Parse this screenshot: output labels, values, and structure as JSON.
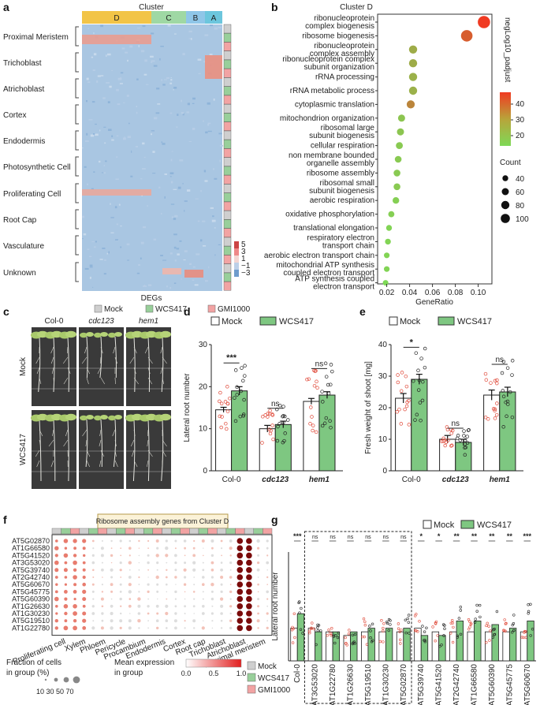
{
  "panels": {
    "a": "a",
    "b": "b",
    "c": "c",
    "d": "d",
    "e": "e",
    "f": "f",
    "g": "g"
  },
  "a": {
    "title": "Cluster",
    "clusters": [
      {
        "label": "D",
        "color": "#f2c447"
      },
      {
        "label": "C",
        "color": "#9fd8a4"
      },
      {
        "label": "B",
        "color": "#8fc6e8"
      },
      {
        "label": "A",
        "color": "#6cc6dd"
      }
    ],
    "row_labels": [
      "Proximal Meristem",
      "Trichoblast",
      "Atrichoblast",
      "Cortex",
      "Endodermis",
      "Photosynthetic Cell",
      "Proliferating Cell",
      "Root Cap",
      "Vasculature",
      "Unknown"
    ],
    "xlabel": "DEGs",
    "colorbar_ticks": [
      "5",
      "3",
      "1",
      "−1",
      "−3"
    ],
    "legend": [
      {
        "label": "Mock",
        "color": "#cfcfcf"
      },
      {
        "label": "WCS417",
        "color": "#98cf9a"
      },
      {
        "label": "GMI1000",
        "color": "#f2a3a3"
      }
    ]
  },
  "b": {
    "title": "Cluster D",
    "colorbar_title": "negLog10_padjust",
    "colorbar_ticks": [
      "40",
      "30",
      "20"
    ],
    "size_title": "Count",
    "size_ticks": [
      "40",
      "60",
      "80",
      "100"
    ],
    "xlabel": "GeneRatio",
    "chart_data": {
      "type": "scatter",
      "title": "Cluster D",
      "xlabel": "GeneRatio",
      "xticks": [
        "0.02",
        "0.04",
        "0.06",
        "0.08",
        "0.10"
      ],
      "xlim": [
        0.012,
        0.112
      ],
      "terms": [
        {
          "label": [
            "ribonucleoprotein",
            "complex biogenesis"
          ],
          "x": 0.105,
          "count": 100,
          "nlp": 45
        },
        {
          "label": [
            "ribosome biogenesis"
          ],
          "x": 0.09,
          "count": 88,
          "nlp": 38
        },
        {
          "label": [
            "ribonucleoprotein",
            "complex assembly"
          ],
          "x": 0.043,
          "count": 45,
          "nlp": 22
        },
        {
          "label": [
            "ribonucleoprotein complex",
            "subunit organization"
          ],
          "x": 0.043,
          "count": 45,
          "nlp": 22
        },
        {
          "label": [
            "rRNA processing"
          ],
          "x": 0.043,
          "count": 44,
          "nlp": 21
        },
        {
          "label": [
            "rRNA metabolic process"
          ],
          "x": 0.043,
          "count": 44,
          "nlp": 21
        },
        {
          "label": [
            "cytoplasmic translation"
          ],
          "x": 0.041,
          "count": 42,
          "nlp": 30
        },
        {
          "label": [
            "mitochondrion organization"
          ],
          "x": 0.033,
          "count": 34,
          "nlp": 17
        },
        {
          "label": [
            "ribosomal large",
            "subunit biogenesis"
          ],
          "x": 0.032,
          "count": 33,
          "nlp": 17
        },
        {
          "label": [
            "cellular respiration"
          ],
          "x": 0.031,
          "count": 32,
          "nlp": 16
        },
        {
          "label": [
            "non membrane bounded",
            "organelle assembly"
          ],
          "x": 0.03,
          "count": 31,
          "nlp": 16
        },
        {
          "label": [
            "ribosome assembly"
          ],
          "x": 0.029,
          "count": 30,
          "nlp": 16
        },
        {
          "label": [
            "ribosomal small",
            "subunit biogenesis"
          ],
          "x": 0.029,
          "count": 30,
          "nlp": 16
        },
        {
          "label": [
            "aerobic respiration"
          ],
          "x": 0.028,
          "count": 29,
          "nlp": 15
        },
        {
          "label": [
            "oxidative phosphorylation"
          ],
          "x": 0.024,
          "count": 25,
          "nlp": 15
        },
        {
          "label": [
            "translational elongation"
          ],
          "x": 0.022,
          "count": 23,
          "nlp": 14
        },
        {
          "label": [
            "respiratory electron",
            "transport chain"
          ],
          "x": 0.021,
          "count": 22,
          "nlp": 14
        },
        {
          "label": [
            "aerobic electron transport chain"
          ],
          "x": 0.02,
          "count": 21,
          "nlp": 14
        },
        {
          "label": [
            "mitochondrial ATP synthesis",
            "coupled electron transport"
          ],
          "x": 0.02,
          "count": 21,
          "nlp": 14
        },
        {
          "label": [
            "ATP synthesis coupled",
            "electron transport"
          ],
          "x": 0.019,
          "count": 20,
          "nlp": 13
        }
      ]
    }
  },
  "c": {
    "columns": [
      "Col-0",
      "cdc123",
      "hem1"
    ],
    "rows": [
      "Mock",
      "WCS417"
    ]
  },
  "d": {
    "legend": [
      "Mock",
      "WCS417"
    ],
    "ylabel": "Lateral root number",
    "groups": [
      "Col-0",
      "cdc123",
      "hem1"
    ],
    "chart_data": {
      "type": "bar",
      "ylabel": "Lateral root number",
      "ylim": [
        0,
        30
      ],
      "yticks": [
        0,
        10,
        20,
        30
      ],
      "categories": [
        "Col-0",
        "cdc123",
        "hem1"
      ],
      "series": [
        {
          "name": "Mock",
          "values": [
            14.5,
            10,
            16.5
          ]
        },
        {
          "name": "WCS417",
          "values": [
            19,
            11,
            18
          ]
        }
      ],
      "errors": [
        [
          0.6,
          0.8,
          0.7
        ],
        [
          1.0,
          0.8,
          0.8
        ]
      ],
      "significance": [
        "***",
        "ns",
        "ns"
      ]
    }
  },
  "e": {
    "legend": [
      "Mock",
      "WCS417"
    ],
    "ylabel": "Fresh weight of shoot [mg]",
    "groups": [
      "Col-0",
      "cdc123",
      "hem1"
    ],
    "chart_data": {
      "type": "bar",
      "ylabel": "Fresh weight of shoot [mg]",
      "ylim": [
        0,
        40
      ],
      "yticks": [
        0,
        10,
        20,
        30,
        40
      ],
      "categories": [
        "Col-0",
        "cdc123",
        "hem1"
      ],
      "series": [
        {
          "name": "Mock",
          "values": [
            23,
            10,
            24
          ]
        },
        {
          "name": "WCS417",
          "values": [
            29,
            9,
            25
          ]
        }
      ],
      "errors": [
        [
          1.5,
          1.2,
          1.6
        ],
        [
          1.6,
          1.0,
          1.5
        ]
      ],
      "significance": [
        "*",
        "ns",
        "ns"
      ]
    }
  },
  "f": {
    "title": "Ribosome assembly genes from Cluster D",
    "genes": [
      "AT5G02870",
      "AT1G66580",
      "AT5G41520",
      "AT3G53020",
      "AT5G39740",
      "AT2G42740",
      "AT5G60670",
      "AT5G45775",
      "AT5G60390",
      "AT1G26630",
      "AT1G30230",
      "AT5G19510",
      "AT1G22780"
    ],
    "cell_types": [
      "Proliferating cell",
      "Xylem",
      "Phloem",
      "Pericycle",
      "Procambium",
      "Endodermis",
      "Cortex",
      "Root cap",
      "Trichoblast",
      "Atrichoblast",
      "Proximal meristem"
    ],
    "frac_title": "Fraction of cells in group (%)",
    "frac_ticks": "10 30 50 70",
    "mean_title": "Mean expression in group",
    "mean_ticks": [
      "0.0",
      "0.5",
      "1.0"
    ],
    "legend": [
      {
        "label": "Mock",
        "color": "#cfcfcf"
      },
      {
        "label": "WCS417",
        "color": "#98cf9a"
      },
      {
        "label": "GMI1000",
        "color": "#f2a3a3"
      }
    ]
  },
  "g": {
    "legend": [
      "Mock",
      "WCS417"
    ],
    "ylabel": "Lateral root number",
    "chart_data": {
      "type": "bar",
      "ylabel": "Lateral root number",
      "ylim": [
        0,
        30
      ],
      "categories": [
        "Col-0",
        "AT3G53020",
        "AT1G22780",
        "AT1G26630",
        "AT5G19510",
        "AT1G30230",
        "AT5G02870",
        "AT5G39740",
        "AT5G41520",
        "AT2G42740",
        "AT1G66580",
        "AT5G60390",
        "AT5G45775",
        "AT5G60670"
      ],
      "series": [
        {
          "name": "Mock",
          "values": [
            9,
            9,
            8,
            7,
            8,
            8,
            8,
            9,
            8,
            8,
            8,
            8,
            8,
            8
          ]
        },
        {
          "name": "WCS417",
          "values": [
            13,
            8,
            8,
            8,
            9,
            9,
            9,
            7,
            7,
            11,
            11,
            10,
            9,
            11
          ]
        }
      ],
      "significance": [
        "***",
        "ns",
        "ns",
        "ns",
        "ns",
        "ns",
        "ns",
        "*",
        "*",
        "**",
        "**",
        "**",
        "**",
        "***"
      ]
    }
  }
}
